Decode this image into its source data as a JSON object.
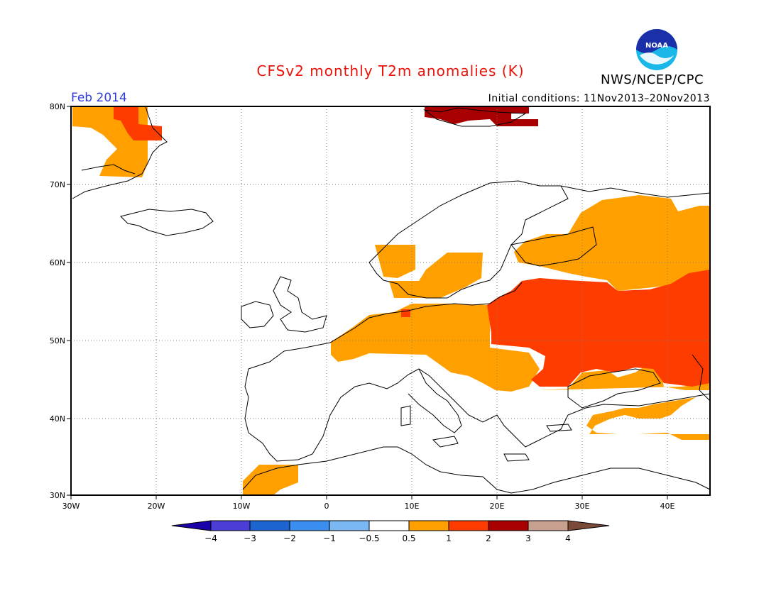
{
  "title": "CFSv2 monthly T2m anomalies (K)",
  "organization": "NWS/NCEP/CPC",
  "logo_text": "NOAA",
  "forecast_month": "Feb 2014",
  "initial_conditions": "Initial conditions: 11Nov2013–20Nov2013",
  "map": {
    "region": "Europe",
    "lat_ticks": [
      "80N",
      "70N",
      "60N",
      "50N",
      "40N",
      "30N"
    ],
    "lon_ticks": [
      "30W",
      "20W",
      "10W",
      "0",
      "10E",
      "20E",
      "30E",
      "40E"
    ],
    "gridlines": true
  },
  "colorbar": {
    "labels": [
      "−4",
      "−3",
      "−2",
      "−1",
      "−0.5",
      "0.5",
      "1",
      "2",
      "3",
      "4"
    ],
    "colors": [
      "#1a00a8",
      "#4a3ed6",
      "#1c64d0",
      "#3a8ef0",
      "#7ab8f4",
      "#ffffff",
      "#ffa000",
      "#ff3c00",
      "#a80000",
      "#c8a090",
      "#7a4a38"
    ]
  }
}
